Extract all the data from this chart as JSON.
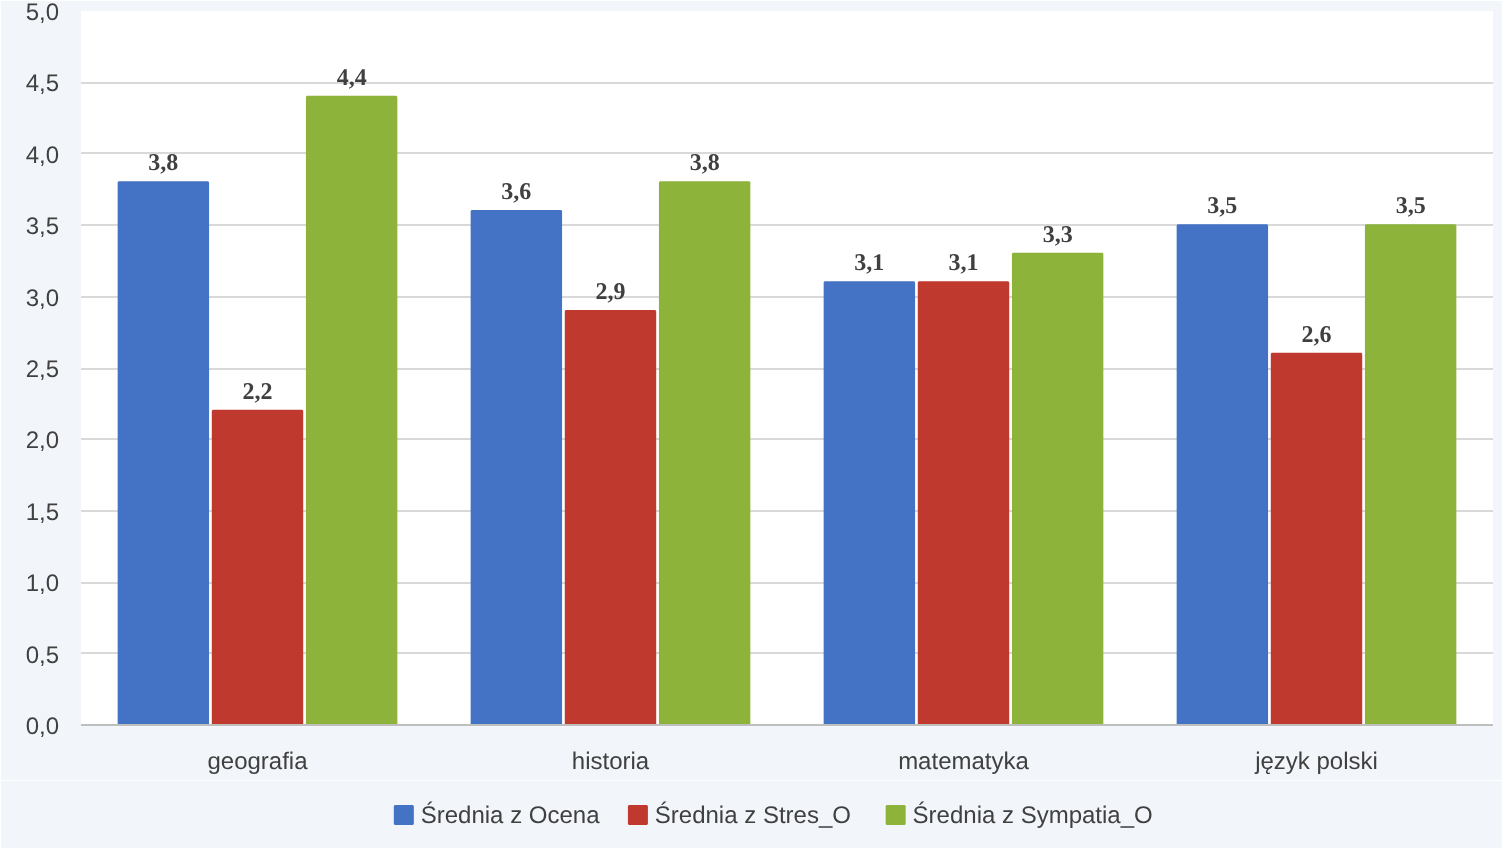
{
  "chart_data": {
    "type": "bar",
    "categories": [
      "geografia",
      "historia",
      "matematyka",
      "język polski"
    ],
    "series": [
      {
        "name": "Średnia z Ocena",
        "color": "#4472c4",
        "values": [
          3.8,
          3.6,
          3.1,
          3.5
        ],
        "value_labels": [
          "3,8",
          "3,6",
          "3,1",
          "3,5"
        ]
      },
      {
        "name": "Średnia z Stres_O",
        "color": "#c0392f",
        "values": [
          2.2,
          2.9,
          3.1,
          2.6
        ],
        "value_labels": [
          "2,2",
          "2,9",
          "3,1",
          "2,6"
        ]
      },
      {
        "name": "Średnia z Sympatia_O",
        "color": "#8db33a",
        "values": [
          4.4,
          3.8,
          3.3,
          3.5
        ],
        "value_labels": [
          "4,4",
          "3,8",
          "3,3",
          "3,5"
        ]
      }
    ],
    "ylim": [
      0,
      5
    ],
    "yticks": [
      {
        "value": 0,
        "label": "0,0"
      },
      {
        "value": 0.5,
        "label": "0,5"
      },
      {
        "value": 1,
        "label": "1,0"
      },
      {
        "value": 1.5,
        "label": "1,5"
      },
      {
        "value": 2,
        "label": "2,0"
      },
      {
        "value": 2.5,
        "label": "2,5"
      },
      {
        "value": 3,
        "label": "3,0"
      },
      {
        "value": 3.5,
        "label": "3,5"
      },
      {
        "value": 4,
        "label": "4,0"
      },
      {
        "value": 4.5,
        "label": "4,5"
      },
      {
        "value": 5,
        "label": "5,0"
      }
    ],
    "grid": "y",
    "legend": "bottom"
  }
}
